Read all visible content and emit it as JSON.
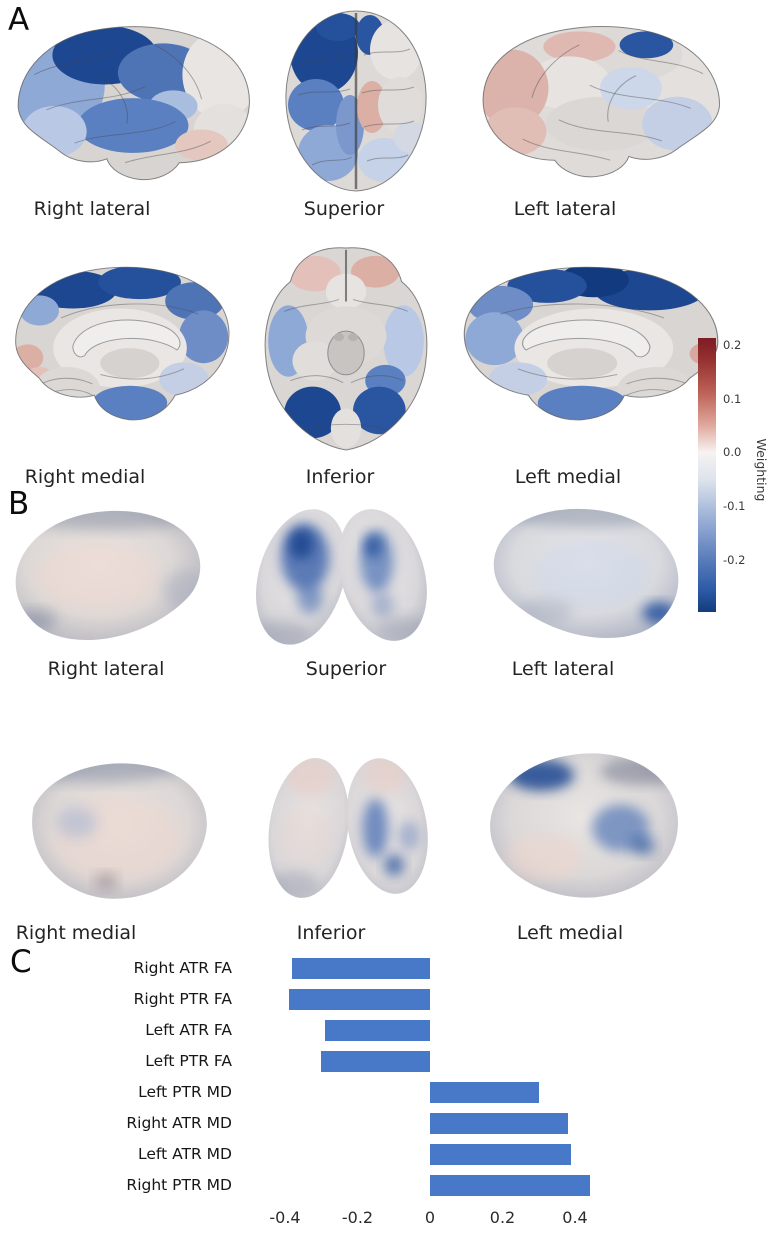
{
  "panel_a": {
    "label": "A",
    "row1_captions": [
      "Right lateral",
      "Superior",
      "Left lateral"
    ],
    "row2_captions": [
      "Right medial",
      "Inferior",
      "Left medial"
    ]
  },
  "panel_b": {
    "label": "B",
    "row1_captions": [
      "Right lateral",
      "Superior",
      "Left lateral"
    ],
    "row2_captions": [
      "Right medial",
      "Inferior",
      "Left medial"
    ]
  },
  "colorbar": {
    "label": "Weighting",
    "ticks": [
      "0.2",
      "0.1",
      "0.0",
      "-0.1",
      "-0.2"
    ],
    "colors": {
      "max": "#7e1c24",
      "mid": "#f6f3f1",
      "min": "#133c7c"
    }
  },
  "panel_c": {
    "label": "C"
  },
  "chart_data": {
    "type": "bar",
    "orientation": "horizontal",
    "categories": [
      "Right ATR FA",
      "Right PTR FA",
      "Left ATR FA",
      "Left PTR FA",
      "Left PTR MD",
      "Right ATR MD",
      "Left ATR MD",
      "Right PTR MD"
    ],
    "values": [
      -0.38,
      -0.39,
      -0.29,
      -0.3,
      0.3,
      0.38,
      0.39,
      0.44
    ],
    "xticks": [
      -0.4,
      -0.2,
      0,
      0.2,
      0.4
    ],
    "xtick_labels": [
      "-0.4",
      "-0.2",
      "0",
      "0.2",
      "0.4"
    ],
    "xlim": [
      -0.5,
      0.55
    ],
    "bar_color": "#4878c8",
    "title": "",
    "xlabel": "",
    "ylabel": ""
  }
}
